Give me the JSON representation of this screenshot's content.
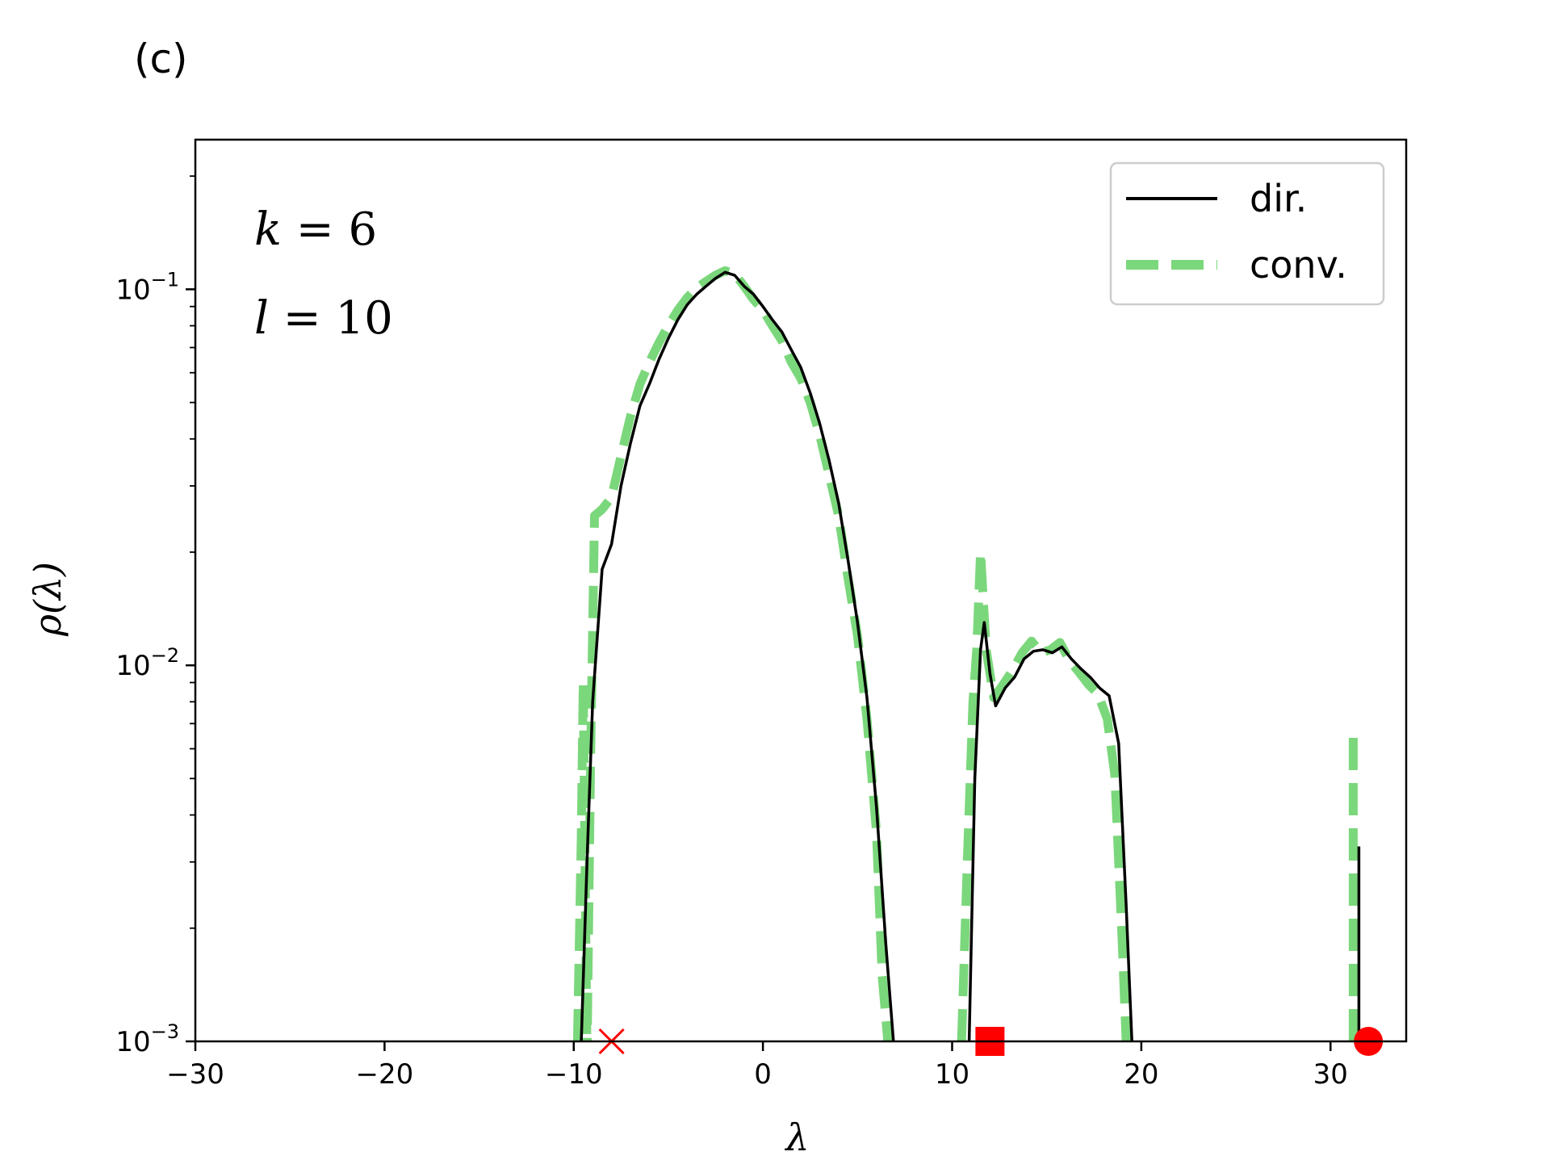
{
  "chart_data": {
    "type": "line",
    "panel_label": "(c)",
    "xlabel": "λ",
    "ylabel": "ρ(λ)",
    "xlim": [
      -30,
      34
    ],
    "ylim": [
      0.001,
      0.25
    ],
    "yscale": "log",
    "grid": false,
    "legend_position": "top-right",
    "x_ticks": [
      {
        "value": -30,
        "label": "−30"
      },
      {
        "value": -20,
        "label": "−20"
      },
      {
        "value": -10,
        "label": "−10"
      },
      {
        "value": 0,
        "label": "0"
      },
      {
        "value": 10,
        "label": "10"
      },
      {
        "value": 20,
        "label": "20"
      },
      {
        "value": 30,
        "label": "30"
      }
    ],
    "y_ticks": [
      {
        "value": 0.001,
        "base": "10",
        "exp": "−3"
      },
      {
        "value": 0.01,
        "base": "10",
        "exp": "−2"
      },
      {
        "value": 0.1,
        "base": "10",
        "exp": "−1"
      }
    ],
    "annotations": [
      {
        "var": "k",
        "eq": " = 6"
      },
      {
        "var": "l",
        "eq": " = 10"
      }
    ],
    "series": [
      {
        "name": "dir.",
        "color": "#000000",
        "style": "solid",
        "segments": [
          [
            [
              -9.6,
              0.001
            ],
            [
              -9.3,
              0.003
            ],
            [
              -9,
              0.008
            ],
            [
              -8.5,
              0.018
            ],
            [
              -8,
              0.021
            ],
            [
              -7.5,
              0.03
            ],
            [
              -7,
              0.039
            ],
            [
              -6.5,
              0.049
            ],
            [
              -6,
              0.056
            ],
            [
              -5.5,
              0.065
            ],
            [
              -5,
              0.074
            ],
            [
              -4.5,
              0.083
            ],
            [
              -4,
              0.091
            ],
            [
              -3.5,
              0.097
            ],
            [
              -3,
              0.102
            ],
            [
              -2.5,
              0.107
            ],
            [
              -2,
              0.111
            ],
            [
              -1.5,
              0.109
            ],
            [
              -1,
              0.102
            ],
            [
              -0.5,
              0.097
            ],
            [
              0,
              0.09
            ],
            [
              0.5,
              0.083
            ],
            [
              1,
              0.077
            ],
            [
              1.5,
              0.069
            ],
            [
              2,
              0.062
            ],
            [
              2.5,
              0.053
            ],
            [
              3,
              0.044
            ],
            [
              3.5,
              0.035
            ],
            [
              4,
              0.027
            ],
            [
              4.5,
              0.019
            ],
            [
              5,
              0.013
            ],
            [
              5.5,
              0.0082
            ],
            [
              6,
              0.0042
            ],
            [
              6.5,
              0.0018
            ],
            [
              6.9,
              0.001
            ]
          ],
          [
            [
              10.9,
              0.001
            ],
            [
              11.2,
              0.005
            ],
            [
              11.5,
              0.011
            ],
            [
              11.7,
              0.013
            ],
            [
              12,
              0.0095
            ],
            [
              12.3,
              0.0078
            ],
            [
              12.8,
              0.0087
            ],
            [
              13.3,
              0.0093
            ],
            [
              13.8,
              0.0104
            ],
            [
              14.3,
              0.0109
            ],
            [
              14.8,
              0.011
            ],
            [
              15.3,
              0.0108
            ],
            [
              15.8,
              0.0112
            ],
            [
              16.3,
              0.0104
            ],
            [
              16.8,
              0.0098
            ],
            [
              17.3,
              0.0093
            ],
            [
              17.8,
              0.0087
            ],
            [
              18.3,
              0.0083
            ],
            [
              18.8,
              0.0062
            ],
            [
              19.2,
              0.0023
            ],
            [
              19.5,
              0.001
            ]
          ],
          [
            [
              31.5,
              0.001
            ],
            [
              31.5,
              0.0033
            ]
          ]
        ]
      },
      {
        "name": "conv.",
        "color": "#7bd77b",
        "style": "dashed",
        "segments": [
          [
            [
              -9.8,
              0.001
            ],
            [
              -9.6,
              0.0035
            ],
            [
              -9.5,
              0.009
            ],
            [
              -9.3,
              0.0009
            ],
            [
              -9.1,
              0.006
            ],
            [
              -8.9,
              0.025
            ],
            [
              -8.5,
              0.026
            ],
            [
              -8,
              0.028
            ],
            [
              -7.5,
              0.036
            ],
            [
              -7,
              0.046
            ],
            [
              -6.5,
              0.056
            ],
            [
              -6,
              0.064
            ],
            [
              -5.5,
              0.072
            ],
            [
              -5,
              0.08
            ],
            [
              -4.5,
              0.088
            ],
            [
              -4,
              0.095
            ],
            [
              -3.5,
              0.101
            ],
            [
              -3,
              0.105
            ],
            [
              -2.5,
              0.109
            ],
            [
              -2,
              0.112
            ],
            [
              -1.5,
              0.11
            ],
            [
              -1,
              0.102
            ],
            [
              -0.5,
              0.094
            ],
            [
              0,
              0.088
            ],
            [
              0.5,
              0.08
            ],
            [
              1,
              0.073
            ],
            [
              1.5,
              0.064
            ],
            [
              2,
              0.058
            ],
            [
              2.5,
              0.05
            ],
            [
              3,
              0.041
            ],
            [
              3.5,
              0.032
            ],
            [
              4,
              0.025
            ],
            [
              4.5,
              0.017
            ],
            [
              5,
              0.012
            ],
            [
              5.5,
              0.0072
            ],
            [
              6,
              0.0036
            ],
            [
              6.3,
              0.0015
            ],
            [
              6.6,
              0.001
            ]
          ],
          [
            [
              10.5,
              0.001
            ],
            [
              10.8,
              0.003
            ],
            [
              11.1,
              0.008
            ],
            [
              11.3,
              0.011
            ],
            [
              11.5,
              0.02
            ],
            [
              11.8,
              0.011
            ],
            [
              12.2,
              0.0082
            ],
            [
              12.7,
              0.0089
            ],
            [
              13.2,
              0.0097
            ],
            [
              13.7,
              0.0108
            ],
            [
              14.2,
              0.0116
            ],
            [
              14.7,
              0.0108
            ],
            [
              15.2,
              0.011
            ],
            [
              15.7,
              0.0115
            ],
            [
              16.2,
              0.0103
            ],
            [
              16.7,
              0.0096
            ],
            [
              17.2,
              0.0089
            ],
            [
              17.7,
              0.0084
            ],
            [
              18.2,
              0.0072
            ],
            [
              18.6,
              0.0051
            ],
            [
              19,
              0.0018
            ],
            [
              19.2,
              0.001
            ]
          ],
          [
            [
              31.2,
              0.001
            ],
            [
              31.2,
              0.0065
            ]
          ]
        ]
      }
    ],
    "markers": [
      {
        "shape": "x",
        "x": -8,
        "y": 0.001,
        "color": "#ff0000"
      },
      {
        "shape": "square",
        "x": 12,
        "y": 0.001,
        "color": "#ff0000"
      },
      {
        "shape": "circle",
        "x": 32,
        "y": 0.001,
        "color": "#ff0000"
      }
    ]
  }
}
